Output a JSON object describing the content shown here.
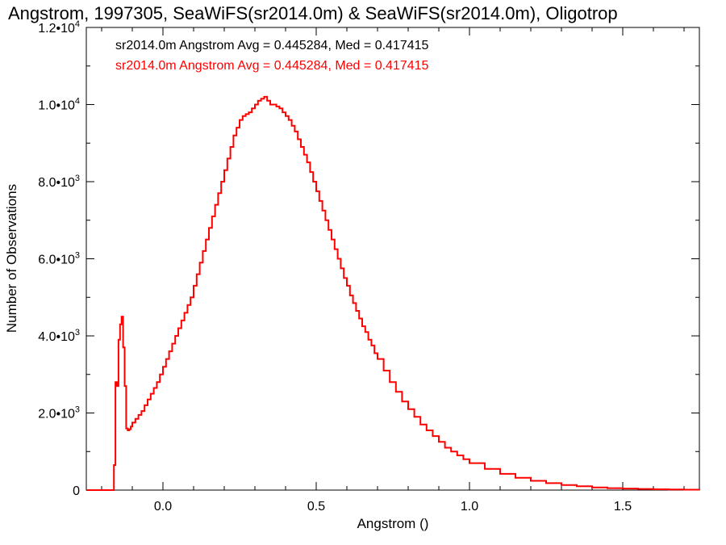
{
  "chart_data": {
    "type": "line",
    "title": "Angstrom, 1997305, SeaWiFS(sr2014.0m) & SeaWiFS(sr2014.0m), Oligotrop",
    "xlabel": "Angstrom ()",
    "ylabel": "Number of Observations",
    "xlim": [
      -0.25,
      1.75
    ],
    "ylim": [
      0,
      12000
    ],
    "grid": false,
    "step": true,
    "x_ticks": [
      {
        "value": 0.0,
        "label": "0.0"
      },
      {
        "value": 0.5,
        "label": "0.5"
      },
      {
        "value": 1.0,
        "label": "1.0"
      },
      {
        "value": 1.5,
        "label": "1.5"
      }
    ],
    "y_ticks": [
      {
        "value": 0,
        "mant": "0",
        "exp": ""
      },
      {
        "value": 2000,
        "mant": "2.0•10",
        "exp": "3"
      },
      {
        "value": 4000,
        "mant": "4.0•10",
        "exp": "3"
      },
      {
        "value": 6000,
        "mant": "6.0•10",
        "exp": "3"
      },
      {
        "value": 8000,
        "mant": "8.0•10",
        "exp": "3"
      },
      {
        "value": 10000,
        "mant": "1.0•10",
        "exp": "4"
      },
      {
        "value": 12000,
        "mant": "1.2•10",
        "exp": "4"
      }
    ],
    "legend": [
      {
        "text": "sr2014.0m Angstrom Avg = 0.445284, Med = 0.417415",
        "color": "#000000"
      },
      {
        "text": "sr2014.0m Angstrom Avg = 0.445284, Med = 0.417415",
        "color": "#ff0000"
      }
    ],
    "series": [
      {
        "color": "#ff0000",
        "x": [
          -0.25,
          -0.17,
          -0.16,
          -0.155,
          -0.15,
          -0.145,
          -0.14,
          -0.135,
          -0.13,
          -0.125,
          -0.12,
          -0.115,
          -0.11,
          -0.105,
          -0.1,
          -0.09,
          -0.08,
          -0.07,
          -0.06,
          -0.05,
          -0.04,
          -0.03,
          -0.02,
          -0.01,
          0.0,
          0.01,
          0.02,
          0.03,
          0.04,
          0.05,
          0.06,
          0.07,
          0.08,
          0.09,
          0.1,
          0.11,
          0.12,
          0.13,
          0.14,
          0.15,
          0.16,
          0.17,
          0.18,
          0.19,
          0.2,
          0.21,
          0.22,
          0.23,
          0.24,
          0.25,
          0.26,
          0.27,
          0.28,
          0.29,
          0.3,
          0.31,
          0.32,
          0.33,
          0.34,
          0.35,
          0.36,
          0.37,
          0.38,
          0.39,
          0.4,
          0.41,
          0.42,
          0.43,
          0.44,
          0.45,
          0.46,
          0.47,
          0.48,
          0.49,
          0.5,
          0.51,
          0.52,
          0.53,
          0.54,
          0.55,
          0.56,
          0.57,
          0.58,
          0.59,
          0.6,
          0.61,
          0.62,
          0.63,
          0.64,
          0.65,
          0.66,
          0.67,
          0.68,
          0.69,
          0.7,
          0.72,
          0.74,
          0.76,
          0.78,
          0.8,
          0.82,
          0.84,
          0.86,
          0.88,
          0.9,
          0.92,
          0.94,
          0.96,
          0.98,
          1.0,
          1.05,
          1.1,
          1.15,
          1.2,
          1.25,
          1.3,
          1.35,
          1.4,
          1.45,
          1.5,
          1.55,
          1.6,
          1.65,
          1.7,
          1.75
        ],
        "y": [
          0,
          0,
          650,
          2800,
          2700,
          3900,
          4300,
          4500,
          3700,
          2700,
          1600,
          1550,
          1580,
          1650,
          1750,
          1850,
          1950,
          2050,
          2200,
          2350,
          2500,
          2650,
          2800,
          3000,
          3200,
          3400,
          3600,
          3800,
          4000,
          4200,
          4400,
          4600,
          4800,
          5000,
          5300,
          5600,
          5900,
          6200,
          6500,
          6800,
          7100,
          7400,
          7700,
          8000,
          8300,
          8600,
          8900,
          9200,
          9400,
          9600,
          9700,
          9750,
          9800,
          9900,
          10000,
          10100,
          10150,
          10200,
          10100,
          10000,
          10000,
          9950,
          9900,
          9800,
          9700,
          9600,
          9450,
          9300,
          9100,
          8900,
          8700,
          8500,
          8250,
          8000,
          7750,
          7500,
          7250,
          7000,
          6750,
          6500,
          6250,
          6000,
          5750,
          5500,
          5300,
          5050,
          4850,
          4650,
          4450,
          4250,
          4100,
          3900,
          3750,
          3550,
          3400,
          3100,
          2800,
          2550,
          2300,
          2100,
          1900,
          1700,
          1550,
          1400,
          1250,
          1100,
          1000,
          900,
          800,
          700,
          550,
          420,
          320,
          240,
          180,
          130,
          100,
          70,
          50,
          40,
          30,
          20,
          15,
          10,
          5
        ]
      }
    ]
  }
}
